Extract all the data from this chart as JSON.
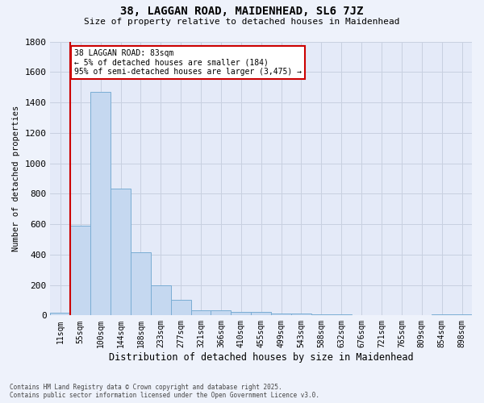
{
  "title_line1": "38, LAGGAN ROAD, MAIDENHEAD, SL6 7JZ",
  "title_line2": "Size of property relative to detached houses in Maidenhead",
  "xlabel": "Distribution of detached houses by size in Maidenhead",
  "ylabel": "Number of detached properties",
  "categories": [
    "11sqm",
    "55sqm",
    "100sqm",
    "144sqm",
    "188sqm",
    "233sqm",
    "277sqm",
    "321sqm",
    "366sqm",
    "410sqm",
    "455sqm",
    "499sqm",
    "543sqm",
    "588sqm",
    "632sqm",
    "676sqm",
    "721sqm",
    "765sqm",
    "809sqm",
    "854sqm",
    "898sqm"
  ],
  "values": [
    20,
    590,
    1470,
    835,
    415,
    200,
    100,
    35,
    35,
    25,
    25,
    10,
    10,
    5,
    5,
    3,
    3,
    2,
    2,
    8,
    8
  ],
  "bar_color": "#c5d8f0",
  "bar_edge_color": "#7aadd4",
  "grid_color": "#c8d0e0",
  "vline_color": "#cc0000",
  "annotation_text": "38 LAGGAN ROAD: 83sqm\n← 5% of detached houses are smaller (184)\n95% of semi-detached houses are larger (3,475) →",
  "annotation_box_color": "#ffffff",
  "annotation_box_edge": "#cc0000",
  "ylim": [
    0,
    1800
  ],
  "yticks": [
    0,
    200,
    400,
    600,
    800,
    1000,
    1200,
    1400,
    1600,
    1800
  ],
  "footer_line1": "Contains HM Land Registry data © Crown copyright and database right 2025.",
  "footer_line2": "Contains public sector information licensed under the Open Government Licence v3.0.",
  "bg_color": "#eef2fb",
  "plot_bg_color": "#e4eaf8"
}
